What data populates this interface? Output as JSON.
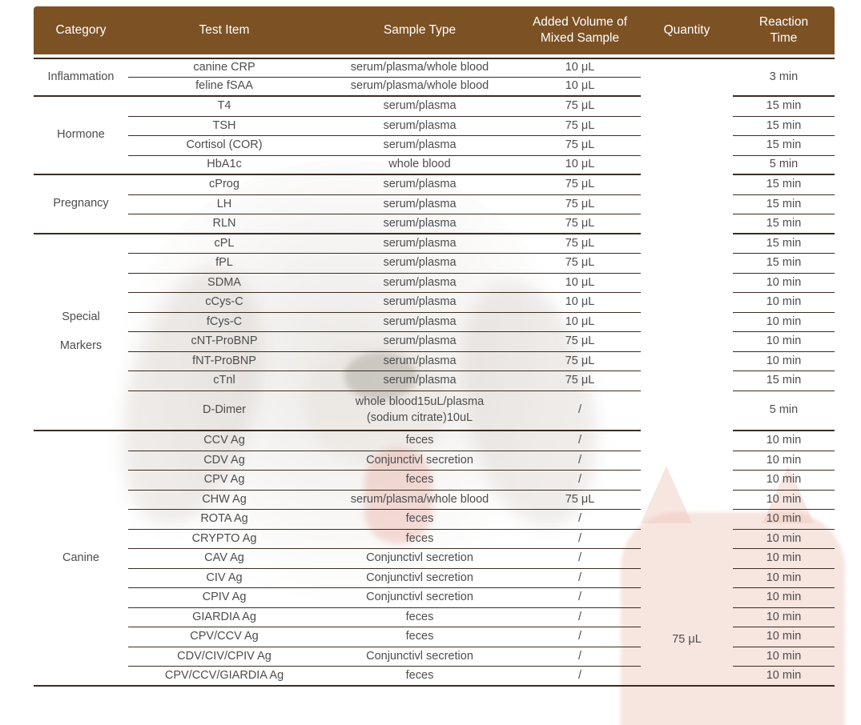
{
  "theme": {
    "header_bg": "#7c5124",
    "header_text": "#ffffff",
    "line_color": "#3a2d21",
    "body_text": "#4d4d4d"
  },
  "table": {
    "columns": [
      "Category",
      "Test Item",
      "Sample Type",
      "Added Volume of Mixed Sample",
      "Quantity",
      "Reaction Time"
    ],
    "quantity_value": "75 μL",
    "sections": [
      {
        "category": "Inflammation",
        "rows": [
          {
            "test": "canine CRP",
            "sample": "serum/plasma/whole blood",
            "volume": "10 μL",
            "time": "3 min",
            "time_rows": 2
          },
          {
            "test": "feline fSAA",
            "sample": "serum/plasma/whole blood",
            "volume": "10 μL",
            "time": null
          }
        ]
      },
      {
        "category": "Hormone",
        "rows": [
          {
            "test": "T4",
            "sample": "serum/plasma",
            "volume": "75 μL",
            "time": "15 min"
          },
          {
            "test": "TSH",
            "sample": "serum/plasma",
            "volume": "75 μL",
            "time": "15 min"
          },
          {
            "test": "Cortisol (COR)",
            "sample": "serum/plasma",
            "volume": "75 μL",
            "time": "15 min"
          },
          {
            "test": "HbA1c",
            "sample": "whole blood",
            "volume": "10 μL",
            "time": "5 min"
          }
        ]
      },
      {
        "category": "Pregnancy",
        "rows": [
          {
            "test": "cProg",
            "sample": "serum/plasma",
            "volume": "75 μL",
            "time": "15 min"
          },
          {
            "test": "LH",
            "sample": "serum/plasma",
            "volume": "75 μL",
            "time": "15 min"
          },
          {
            "test": "RLN",
            "sample": "serum/plasma",
            "volume": "75 μL",
            "time": "15 min"
          }
        ]
      },
      {
        "category": "Special\nMarkers",
        "rows": [
          {
            "test": "cPL",
            "sample": "serum/plasma",
            "volume": "75 μL",
            "time": "15 min"
          },
          {
            "test": "fPL",
            "sample": "serum/plasma",
            "volume": "75 μL",
            "time": "15 min"
          },
          {
            "test": "SDMA",
            "sample": "serum/plasma",
            "volume": "10 μL",
            "time": "10 min"
          },
          {
            "test": "cCys-C",
            "sample": "serum/plasma",
            "volume": "10 μL",
            "time": "10 min"
          },
          {
            "test": "fCys-C",
            "sample": "serum/plasma",
            "volume": "10 μL",
            "time": "10 min"
          },
          {
            "test": "cNT-ProBNP",
            "sample": "serum/plasma",
            "volume": "75 μL",
            "time": "10 min"
          },
          {
            "test": "fNT-ProBNP",
            "sample": "serum/plasma",
            "volume": "75 μL",
            "time": "10 min"
          },
          {
            "test": "cTnl",
            "sample": "serum/plasma",
            "volume": "75 μL",
            "time": "15 min"
          },
          {
            "test": "D-Dimer",
            "sample": [
              "whole blood15uL/plasma",
              "(sodium citrate)10uL"
            ],
            "volume": "/",
            "time": "5 min",
            "tall": true
          }
        ]
      },
      {
        "category": "Canine",
        "rows": [
          {
            "test": "CCV Ag",
            "sample": "feces",
            "volume": "/",
            "time": "10 min"
          },
          {
            "test": "CDV Ag",
            "sample": "Conjunctivl secretion",
            "volume": "/",
            "time": "10 min"
          },
          {
            "test": "CPV Ag",
            "sample": "feces",
            "volume": "/",
            "time": "10 min"
          },
          {
            "test": "CHW Ag",
            "sample": "serum/plasma/whole blood",
            "volume": "75 μL",
            "time": "10 min"
          },
          {
            "test": "ROTA Ag",
            "sample": "feces",
            "volume": "/",
            "time": "10 min"
          },
          {
            "test": "CRYPTO Ag",
            "sample": "feces",
            "volume": "/",
            "time": "10 min"
          },
          {
            "test": "CAV Ag",
            "sample": "Conjunctivl secretion",
            "volume": "/",
            "time": "10 min"
          },
          {
            "test": "CIV Ag",
            "sample": "Conjunctivl secretion",
            "volume": "/",
            "time": "10 min"
          },
          {
            "test": "CPIV Ag",
            "sample": "Conjunctivl secretion",
            "volume": "/",
            "time": "10 min"
          },
          {
            "test": "GIARDIA Ag",
            "sample": "feces",
            "volume": "/",
            "time": "10 min"
          },
          {
            "test": "CPV/CCV Ag",
            "sample": "feces",
            "volume": "/",
            "time": "10 min"
          },
          {
            "test": "CDV/CIV/CPIV Ag",
            "sample": "Conjunctivl secretion",
            "volume": "/",
            "time": "10 min"
          },
          {
            "test": "CPV/CCV/GIARDIA Ag",
            "sample": "feces",
            "volume": "/",
            "time": "10 min"
          }
        ]
      }
    ]
  }
}
